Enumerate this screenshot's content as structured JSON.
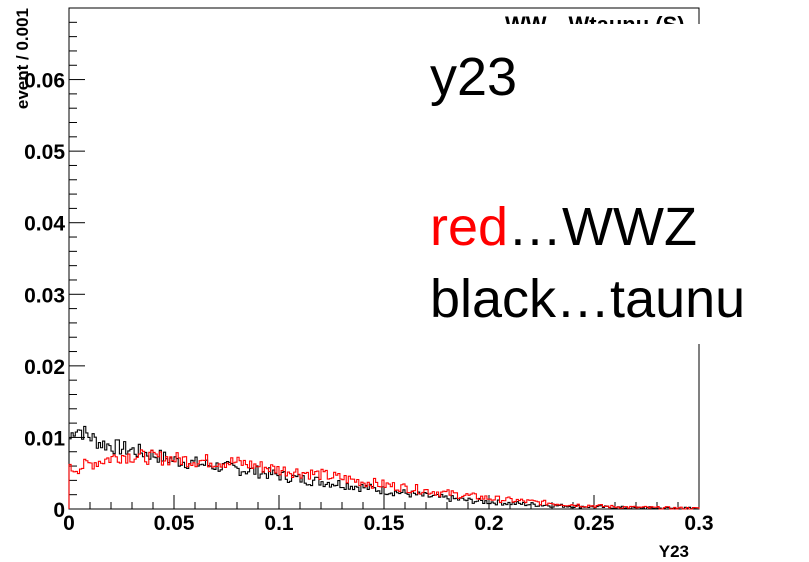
{
  "slide": {
    "title": "y23",
    "legend_red_word": "red",
    "legend_red_rest": "…WWZ",
    "legend_black": "black…taunu"
  },
  "chart_data": {
    "type": "line",
    "title": "WW→Wtaunu (S)",
    "xlabel": "Y23",
    "ylabel": "event / 0.001",
    "xlim": [
      0,
      0.3
    ],
    "ylim": [
      0,
      0.07
    ],
    "x_ticks": [
      "0",
      "0.05",
      "0.1",
      "0.15",
      "0.2",
      "0.25",
      "0.3"
    ],
    "y_ticks": [
      "0",
      "0.01",
      "0.02",
      "0.03",
      "0.04",
      "0.05",
      "0.06"
    ],
    "bin_width": 0.001,
    "grid": false,
    "series": [
      {
        "name": "taunu",
        "color": "#000000",
        "points": [
          [
            0.0,
            0.0095
          ],
          [
            0.003,
            0.0115
          ],
          [
            0.008,
            0.0105
          ],
          [
            0.015,
            0.0092
          ],
          [
            0.025,
            0.0085
          ],
          [
            0.04,
            0.0076
          ],
          [
            0.05,
            0.0068
          ],
          [
            0.07,
            0.006
          ],
          [
            0.09,
            0.0052
          ],
          [
            0.11,
            0.0042
          ],
          [
            0.13,
            0.0035
          ],
          [
            0.15,
            0.0026
          ],
          [
            0.17,
            0.0018
          ],
          [
            0.19,
            0.0012
          ],
          [
            0.21,
            0.0008
          ],
          [
            0.23,
            0.0005
          ],
          [
            0.25,
            0.0003
          ],
          [
            0.27,
            0.00015
          ],
          [
            0.3,
            5e-05
          ]
        ]
      },
      {
        "name": "WWZ",
        "color": "#ff0000",
        "points": [
          [
            0.0,
            0.0055
          ],
          [
            0.005,
            0.0058
          ],
          [
            0.012,
            0.0065
          ],
          [
            0.025,
            0.0075
          ],
          [
            0.04,
            0.0072
          ],
          [
            0.06,
            0.0068
          ],
          [
            0.08,
            0.0065
          ],
          [
            0.1,
            0.0055
          ],
          [
            0.12,
            0.0048
          ],
          [
            0.14,
            0.0038
          ],
          [
            0.16,
            0.003
          ],
          [
            0.18,
            0.0022
          ],
          [
            0.2,
            0.0015
          ],
          [
            0.22,
            0.001
          ],
          [
            0.24,
            0.0006
          ],
          [
            0.26,
            0.0003
          ],
          [
            0.28,
            0.00015
          ],
          [
            0.3,
            5e-05
          ]
        ]
      }
    ]
  }
}
